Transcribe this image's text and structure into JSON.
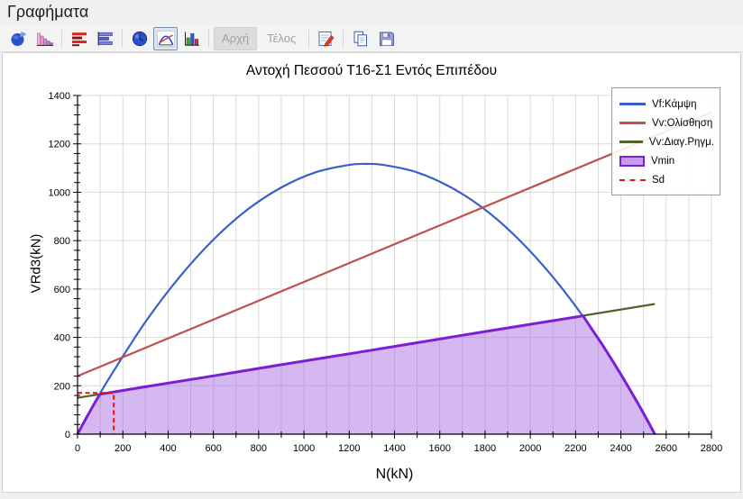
{
  "window": {
    "title": "Γραφήματα"
  },
  "toolbar": {
    "buttons": [
      {
        "name": "pie-chart",
        "type": "icon"
      },
      {
        "name": "histogram",
        "type": "icon"
      },
      {
        "name": "hbars-red",
        "type": "icon"
      },
      {
        "name": "hbars-blue",
        "type": "icon"
      },
      {
        "name": "gauge",
        "type": "icon"
      },
      {
        "name": "curve-chart",
        "type": "icon",
        "selected": true
      },
      {
        "name": "columns",
        "type": "icon"
      },
      {
        "name": "start",
        "type": "text",
        "label": "Αρχή",
        "disabled": true
      },
      {
        "name": "end",
        "type": "text",
        "label": "Τέλος",
        "disabled": true
      },
      {
        "name": "edit",
        "type": "icon"
      },
      {
        "name": "copy",
        "type": "icon"
      },
      {
        "name": "save",
        "type": "icon"
      }
    ]
  },
  "chart_data": {
    "type": "line",
    "title": "Αντοχή Πεσσού Τ16-Σ1 Εντός Επιπέδου",
    "xlabel": "N(kN)",
    "ylabel": "VRd3(kN)",
    "xlim": [
      0,
      2800
    ],
    "ylim": [
      0,
      1400
    ],
    "x_tick_step": 200,
    "x_minor_step": 100,
    "y_tick_step": 200,
    "y_minor_step": 40,
    "grid": {
      "x_step": 100,
      "y_step": 200,
      "color": "#d9d9d9"
    },
    "legend_position": "top-right",
    "series": [
      {
        "name": "Vf:Κάμψη",
        "color": "#3a5fc8",
        "width": 2.2,
        "smooth": true,
        "points": [
          [
            0,
            0
          ],
          [
            75,
            128
          ],
          [
            150,
            247
          ],
          [
            300,
            464
          ],
          [
            450,
            649
          ],
          [
            600,
            804
          ],
          [
            750,
            928
          ],
          [
            900,
            1020
          ],
          [
            1050,
            1082
          ],
          [
            1200,
            1113
          ],
          [
            1275,
            1117
          ],
          [
            1350,
            1113
          ],
          [
            1500,
            1082
          ],
          [
            1650,
            1020
          ],
          [
            1800,
            928
          ],
          [
            1950,
            804
          ],
          [
            2100,
            649
          ],
          [
            2250,
            464
          ],
          [
            2400,
            247
          ],
          [
            2475,
            128
          ],
          [
            2550,
            0
          ]
        ]
      },
      {
        "name": "Vv:Ολίσθηση",
        "color": "#c0504d",
        "width": 2.2,
        "points": [
          [
            0,
            240
          ],
          [
            2800,
            1330
          ]
        ]
      },
      {
        "name": "Vv:Διαγ.Ρηγμ.",
        "color": "#4f6228",
        "width": 2.2,
        "points": [
          [
            0,
            150
          ],
          [
            2550,
            538
          ]
        ]
      },
      {
        "name": "Vmin",
        "color": "#7b1fd6",
        "width": 3,
        "fill": "rgba(155,85,224,0.42)",
        "points": [
          [
            0,
            0
          ],
          [
            20,
            35
          ],
          [
            40,
            69
          ],
          [
            60,
            103
          ],
          [
            80,
            136
          ],
          [
            99,
            165
          ],
          [
            300,
            196
          ],
          [
            600,
            241
          ],
          [
            900,
            287
          ],
          [
            1200,
            332
          ],
          [
            1500,
            378
          ],
          [
            1800,
            424
          ],
          [
            2100,
            469
          ],
          [
            2233,
            489
          ],
          [
            2280,
            423
          ],
          [
            2320,
            367
          ],
          [
            2360,
            308
          ],
          [
            2400,
            247
          ],
          [
            2440,
            184
          ],
          [
            2480,
            119
          ],
          [
            2520,
            52
          ],
          [
            2550,
            0
          ]
        ]
      },
      {
        "name": "Sd",
        "color": "#e3120b",
        "width": 2,
        "dash": [
          5,
          3.5
        ],
        "points": [
          [
            0,
            170
          ],
          [
            160,
            170
          ],
          [
            160,
            0
          ]
        ]
      }
    ],
    "sd_point": {
      "N": 160,
      "V": 170
    },
    "legend": [
      {
        "label": "Vf:Κάμψη",
        "swatch": "line",
        "color": "#3a5fc8"
      },
      {
        "label": "Vv:Ολίσθηση",
        "swatch": "line",
        "color": "#c0504d"
      },
      {
        "label": "Vv:Διαγ.Ρηγμ.",
        "swatch": "line",
        "color": "#4f6228"
      },
      {
        "label": "Vmin",
        "swatch": "patch",
        "color": "#7b1fd6",
        "fill": "#c49bee"
      },
      {
        "label": "Sd",
        "swatch": "dashed",
        "color": "#e3120b"
      }
    ]
  }
}
